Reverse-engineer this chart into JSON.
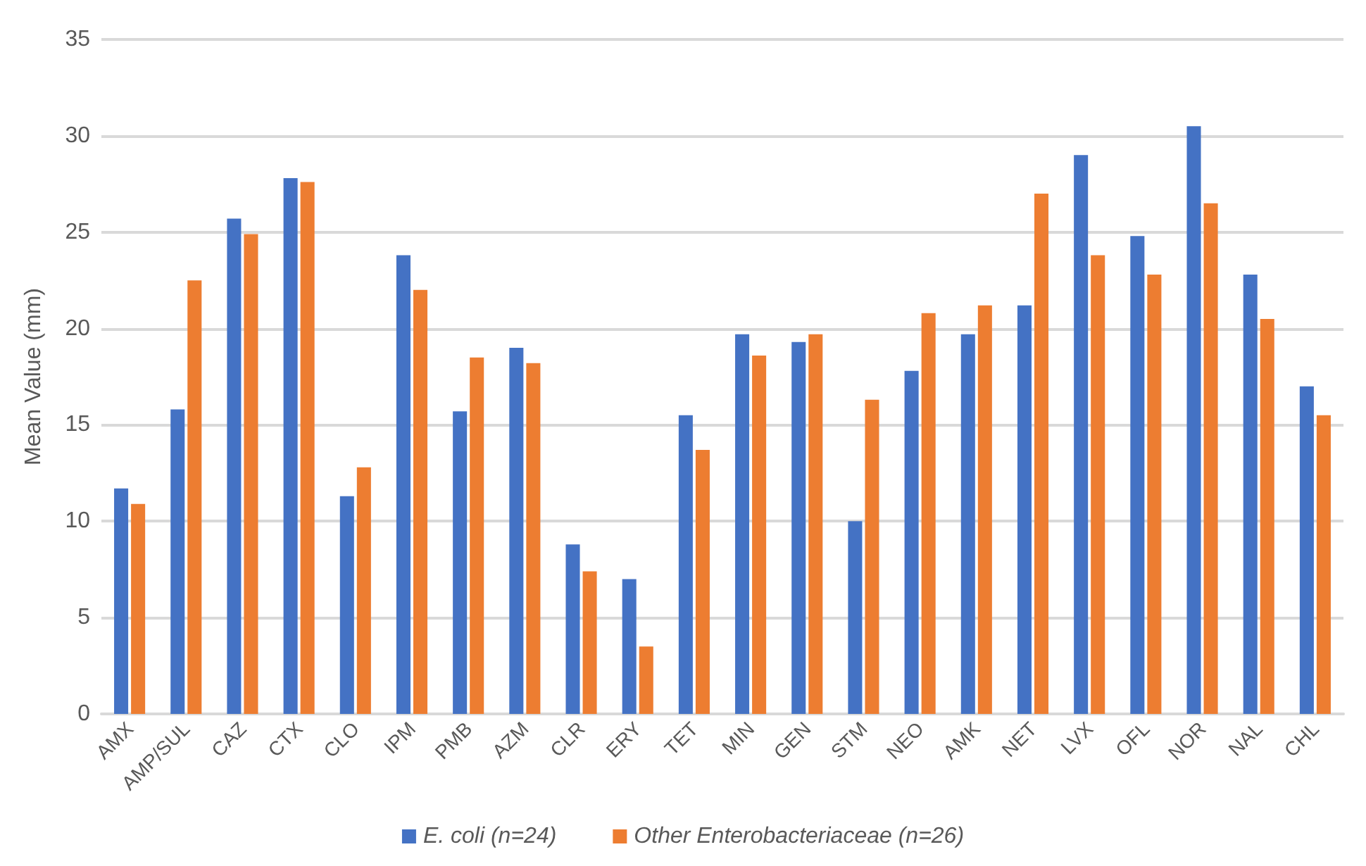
{
  "chart_data": {
    "type": "bar",
    "ylabel": "Mean Value (mm)",
    "categories": [
      "AMX",
      "AMP/SUL",
      "CAZ",
      "CTX",
      "CLO",
      "IPM",
      "PMB",
      "AZM",
      "CLR",
      "ERY",
      "TET",
      "MIN",
      "GEN",
      "STM",
      "NEO",
      "AMK",
      "NET",
      "LVX",
      "OFL",
      "NOR",
      "NAL",
      "CHL"
    ],
    "series": [
      {
        "name": "E. coli (n=24)",
        "color": "#4472c4",
        "values": [
          11.7,
          15.8,
          25.7,
          27.8,
          11.3,
          23.8,
          15.7,
          19.0,
          8.8,
          7.0,
          15.5,
          19.7,
          19.3,
          10.0,
          17.8,
          19.7,
          21.2,
          29.0,
          24.8,
          30.5,
          22.8,
          17.0
        ]
      },
      {
        "name": "Other Enterobacteriaceae (n=26)",
        "color": "#ed7d31",
        "values": [
          10.9,
          22.5,
          24.9,
          27.6,
          12.8,
          22.0,
          18.5,
          18.2,
          7.4,
          3.5,
          13.7,
          18.6,
          19.7,
          16.3,
          20.8,
          21.2,
          27.0,
          23.8,
          22.8,
          26.5,
          20.5,
          15.5
        ]
      }
    ],
    "ylim": [
      0,
      35
    ],
    "yticks": [
      0,
      5,
      10,
      15,
      20,
      25,
      30,
      35
    ],
    "grid": "y",
    "legend": "bottom"
  }
}
